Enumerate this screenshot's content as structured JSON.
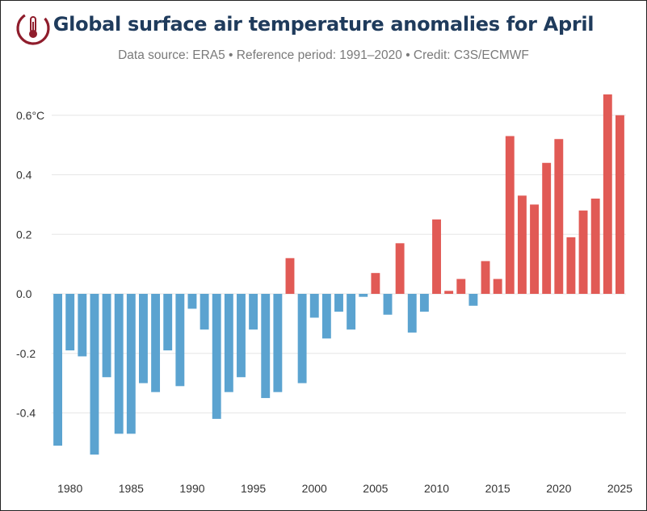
{
  "header": {
    "title": "Global surface air temperature anomalies for April",
    "subtitle": "Data source: ERA5 • Reference period: 1991–2020 • Credit: C3S/ECMWF"
  },
  "colors": {
    "negative": "#5ba3d0",
    "positive": "#e15a55",
    "title": "#1f3b5c",
    "logo": "#8f1d2c",
    "grid": "#e6e6e6"
  },
  "icons": {
    "logo": "thermometer-logo-icon"
  },
  "chart_data": {
    "type": "bar",
    "title": "Global surface air temperature anomalies for April",
    "subtitle": "Data source: ERA5 • Reference period: 1991–2020 • Credit: C3S/ECMWF",
    "xlabel": "",
    "ylabel": "",
    "unit": "°C",
    "ylim": [
      -0.6,
      0.7
    ],
    "yticks": [
      {
        "value": 0.6,
        "label": "0.6°C"
      },
      {
        "value": 0.4,
        "label": "0.4"
      },
      {
        "value": 0.2,
        "label": "0.2"
      },
      {
        "value": 0.0,
        "label": "0.0"
      },
      {
        "value": -0.2,
        "label": "-0.2"
      },
      {
        "value": -0.4,
        "label": "-0.4"
      }
    ],
    "xticks": [
      1980,
      1985,
      1990,
      1995,
      2000,
      2005,
      2010,
      2015,
      2020,
      2025
    ],
    "grid": true,
    "legend": "none",
    "categories": [
      1979,
      1980,
      1981,
      1982,
      1983,
      1984,
      1985,
      1986,
      1987,
      1988,
      1989,
      1990,
      1991,
      1992,
      1993,
      1994,
      1995,
      1996,
      1997,
      1998,
      1999,
      2000,
      2001,
      2002,
      2003,
      2004,
      2005,
      2006,
      2007,
      2008,
      2009,
      2010,
      2011,
      2012,
      2013,
      2014,
      2015,
      2016,
      2017,
      2018,
      2019,
      2020,
      2021,
      2022,
      2023,
      2024,
      2025
    ],
    "values": [
      -0.51,
      -0.19,
      -0.21,
      -0.54,
      -0.28,
      -0.47,
      -0.47,
      -0.3,
      -0.33,
      -0.19,
      -0.31,
      -0.05,
      -0.12,
      -0.42,
      -0.33,
      -0.28,
      -0.12,
      -0.35,
      -0.33,
      0.12,
      -0.3,
      -0.08,
      -0.15,
      -0.06,
      -0.12,
      -0.01,
      0.07,
      -0.07,
      0.17,
      -0.13,
      -0.06,
      0.25,
      0.01,
      0.05,
      -0.04,
      0.11,
      0.05,
      0.53,
      0.33,
      0.3,
      0.44,
      0.52,
      0.19,
      0.28,
      0.32,
      0.67,
      0.6
    ]
  }
}
